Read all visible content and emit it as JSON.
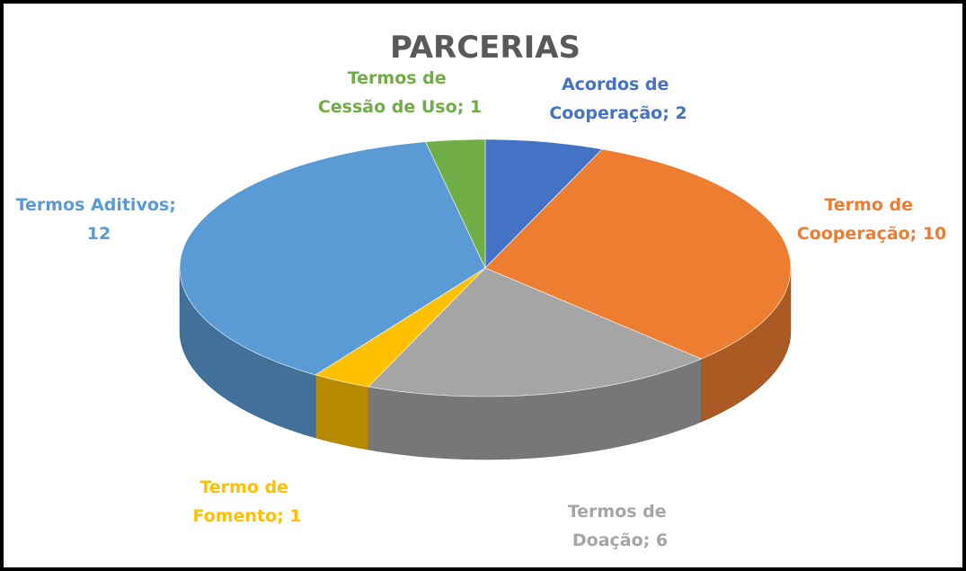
{
  "chart_data": {
    "type": "pie3d",
    "title": "PARCERIAS",
    "categories": [
      "Acordos de Cooperação",
      "Termo de Cooperação",
      "Termos de Doação",
      "Termo de Fomento",
      "Termos Aditivos",
      "Termos de Cessão de Uso"
    ],
    "values": [
      2,
      10,
      6,
      1,
      12,
      1
    ],
    "colors": [
      "#4472c4",
      "#ed7d31",
      "#a5a5a5",
      "#ffc000",
      "#5b9bd5",
      "#70ad47"
    ],
    "label_separator": "; "
  }
}
